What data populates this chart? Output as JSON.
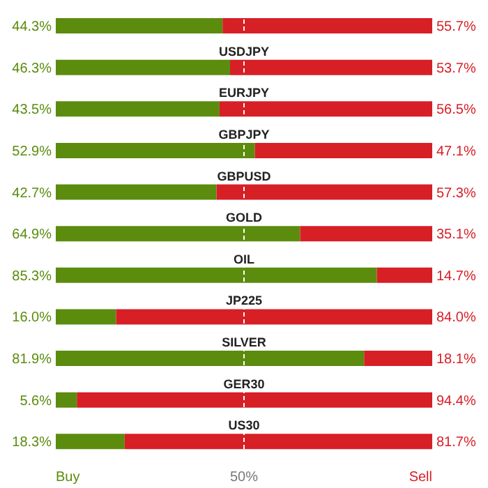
{
  "chart_data": {
    "type": "bar",
    "orientation": "horizontal",
    "stacked": true,
    "categories": [
      null,
      "USDJPY",
      "EURJPY",
      "GBPJPY",
      "GBPUSD",
      "GOLD",
      "OIL",
      "JP225",
      "SILVER",
      "GER30",
      "US30"
    ],
    "series": [
      {
        "color": "#5b8c0e",
        "values": [
          44.3,
          46.3,
          43.5,
          52.9,
          42.7,
          64.9,
          85.3,
          16.0,
          81.9,
          5.6,
          18.3
        ],
        "value_labels": [
          "44.3%",
          "46.3%",
          "43.5%",
          "52.9%",
          "42.7%",
          "64.9%",
          "85.3%",
          "16.0%",
          "81.9%",
          "5.6%",
          "18.3%"
        ]
      },
      {
        "color": "#d71f26",
        "values": [
          55.7,
          53.7,
          56.5,
          47.1,
          57.3,
          35.1,
          14.7,
          84.0,
          18.1,
          94.4,
          81.7
        ],
        "value_labels": [
          "55.7%",
          "53.7%",
          "56.5%",
          "47.1%",
          "57.3%",
          "35.1%",
          "14.7%",
          "84.0%",
          "18.1%",
          "94.4%",
          "81.7%"
        ]
      }
    ],
    "annotations": [
      "Buy",
      "Sell"
    ],
    "ref_lines": [
      {
        "axis": "x",
        "value": 50,
        "label": "50%",
        "color": "#ffffff",
        "line_style": "dashed"
      }
    ]
  }
}
